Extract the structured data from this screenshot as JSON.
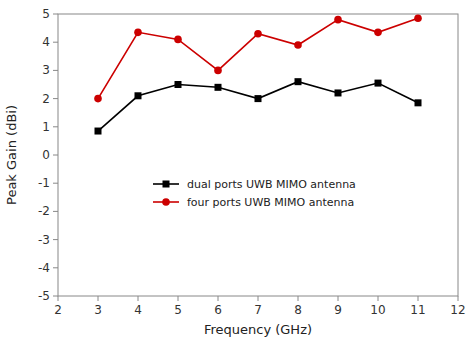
{
  "chart_data": {
    "type": "line",
    "x": [
      3,
      4,
      5,
      6,
      7,
      8,
      9,
      10,
      11
    ],
    "series": [
      {
        "name": "dual ports UWB MIMO antenna",
        "color": "#000000",
        "marker": "square",
        "line_style": "solid",
        "values": [
          0.85,
          2.1,
          2.5,
          2.4,
          2.0,
          2.6,
          2.2,
          2.55,
          1.85
        ]
      },
      {
        "name": "four ports UWB MIMO antenna",
        "color": "#cc0000",
        "marker": "circle",
        "line_style": "solid",
        "values": [
          2.0,
          4.35,
          4.1,
          3.0,
          4.3,
          3.9,
          4.8,
          4.35,
          4.85
        ]
      }
    ],
    "xlabel": "Frequency (GHz)",
    "ylabel": "Peak Gain (dBi)",
    "xlim": [
      2,
      12
    ],
    "ylim": [
      -5,
      5
    ],
    "xticks": [
      2,
      3,
      4,
      5,
      6,
      7,
      8,
      9,
      10,
      11,
      12
    ],
    "yticks": [
      -5,
      -4,
      -3,
      -2,
      -1,
      0,
      1,
      2,
      3,
      4,
      5
    ],
    "grid": false,
    "legend": "center"
  }
}
